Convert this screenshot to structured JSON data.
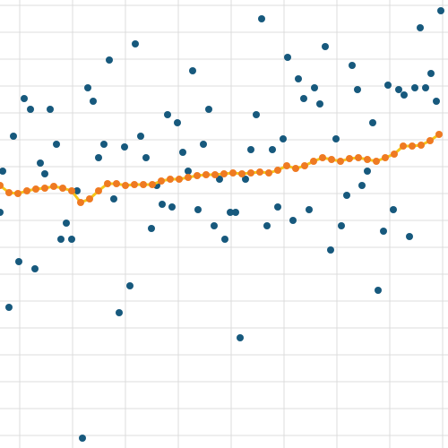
{
  "chart_data": {
    "type": "scatter",
    "xlim": [
      0,
      500
    ],
    "ylim": [
      0,
      500
    ],
    "xticks": [
      22,
      81,
      140,
      199,
      258,
      317,
      376,
      435,
      494
    ],
    "yticks": [
      14,
      44,
      74,
      104,
      134,
      164,
      194,
      224,
      254,
      284,
      314,
      344,
      374,
      404,
      434,
      464,
      494
    ],
    "grid": true,
    "series": [
      {
        "color": "#17597d",
        "x": [
          3,
          0,
          15,
          10,
          21,
          27,
          34,
          39,
          45,
          50,
          56,
          63,
          68,
          74,
          80,
          86,
          92,
          98,
          104,
          110,
          116,
          122,
          127,
          133,
          139,
          145,
          151,
          157,
          163,
          169,
          175,
          181,
          187,
          192,
          198,
          204,
          210,
          215,
          221,
          227,
          233,
          239,
          245,
          251,
          257,
          263,
          268,
          274,
          280,
          286,
          292,
          298,
          304,
          310,
          316,
          321,
          327,
          333,
          339,
          345,
          351,
          357,
          363,
          369,
          375,
          381,
          387,
          393,
          399,
          404,
          410,
          416,
          422,
          428,
          433,
          439,
          445,
          451,
          457,
          463,
          469,
          475,
          481,
          487,
          492
        ],
        "values": [
          309,
          263,
          348,
          157,
          208,
          390,
          378,
          200,
          318,
          306,
          378,
          339,
          233,
          251,
          233,
          287,
          11,
          402,
          387,
          324,
          339,
          433,
          278,
          151,
          336,
          181,
          451,
          348,
          324,
          245,
          293,
          272,
          372,
          269,
          363,
          330,
          309,
          421,
          266,
          339,
          378,
          248,
          300,
          233,
          263,
          263,
          123,
          300,
          333,
          372,
          479,
          248,
          333,
          269,
          345,
          436,
          254,
          412,
          390,
          266,
          402,
          384,
          448,
          221,
          345,
          248,
          282,
          427,
          400,
          293,
          309,
          363,
          176,
          242,
          405,
          266,
          400,
          394,
          236,
          402,
          469,
          402,
          418,
          387,
          488
        ]
      },
      {
        "color": "#ef7a22",
        "line_color": "#f5c518",
        "x": [
          0,
          10,
          20,
          30,
          40,
          50,
          60,
          70,
          80,
          90,
          100,
          110,
          120,
          130,
          140,
          150,
          160,
          170,
          180,
          190,
          200,
          210,
          220,
          230,
          240,
          250,
          260,
          270,
          280,
          290,
          300,
          310,
          320,
          330,
          340,
          350,
          360,
          370,
          380,
          390,
          400,
          410,
          420,
          430,
          440,
          450,
          460,
          470,
          480,
          490
        ],
        "values": [
          293,
          285,
          284,
          287,
          289,
          290,
          292,
          290,
          287,
          274,
          278,
          287,
          295,
          295,
          293,
          294,
          294,
          294,
          298,
          300,
          300,
          302,
          304,
          305,
          305,
          306,
          307,
          306,
          307,
          308,
          307,
          310,
          315,
          312,
          315,
          320,
          324,
          322,
          320,
          323,
          324,
          322,
          320,
          324,
          328,
          337,
          337,
          338,
          343,
          350
        ]
      }
    ]
  }
}
